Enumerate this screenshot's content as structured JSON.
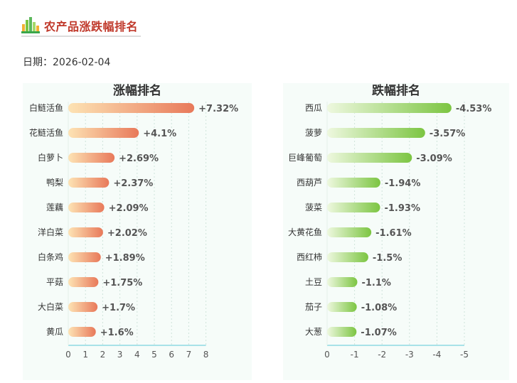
{
  "header": {
    "title": "农产品涨跌幅排名",
    "date_label": "日期：",
    "date_value": "2026-02-04"
  },
  "colors": {
    "rise_start": "#fde3b4",
    "rise_end": "#e8795a",
    "fall_start": "#eef8df",
    "fall_end": "#7cc542",
    "axis": "#5bc8d8",
    "title_red": "#c0392b"
  },
  "chart_data": [
    {
      "type": "bar",
      "orientation": "horizontal",
      "title": "涨幅排名",
      "categories": [
        "白鲢活鱼",
        "花鲢活鱼",
        "白萝卜",
        "鸭梨",
        "莲藕",
        "洋白菜",
        "白条鸡",
        "平菇",
        "大白菜",
        "黄瓜"
      ],
      "values": [
        7.32,
        4.1,
        2.69,
        2.37,
        2.09,
        2.02,
        1.89,
        1.75,
        1.7,
        1.6
      ],
      "value_labels": [
        "+7.32%",
        "+4.1%",
        "+2.69%",
        "+2.37%",
        "+2.09%",
        "+2.02%",
        "+1.89%",
        "+1.75%",
        "+1.7%",
        "+1.6%"
      ],
      "xlim": [
        0,
        8
      ],
      "x_ticks": [
        "0",
        "1",
        "2",
        "3",
        "4",
        "5",
        "6",
        "7",
        "8"
      ],
      "grid": "vertical dashed"
    },
    {
      "type": "bar",
      "orientation": "horizontal",
      "title": "跌幅排名",
      "categories": [
        "西瓜",
        "菠萝",
        "巨峰葡萄",
        "西葫芦",
        "菠菜",
        "大黄花鱼",
        "西红柿",
        "土豆",
        "茄子",
        "大葱"
      ],
      "values": [
        -4.53,
        -3.57,
        -3.09,
        -1.94,
        -1.93,
        -1.61,
        -1.5,
        -1.1,
        -1.08,
        -1.07
      ],
      "value_labels": [
        "-4.53%",
        "-3.57%",
        "-3.09%",
        "-1.94%",
        "-1.93%",
        "-1.61%",
        "-1.5%",
        "-1.1%",
        "-1.08%",
        "-1.07%"
      ],
      "xlim": [
        0,
        -5
      ],
      "x_ticks": [
        "0",
        "-1",
        "-2",
        "-3",
        "-4",
        "-5"
      ],
      "grid": "vertical dashed"
    }
  ]
}
